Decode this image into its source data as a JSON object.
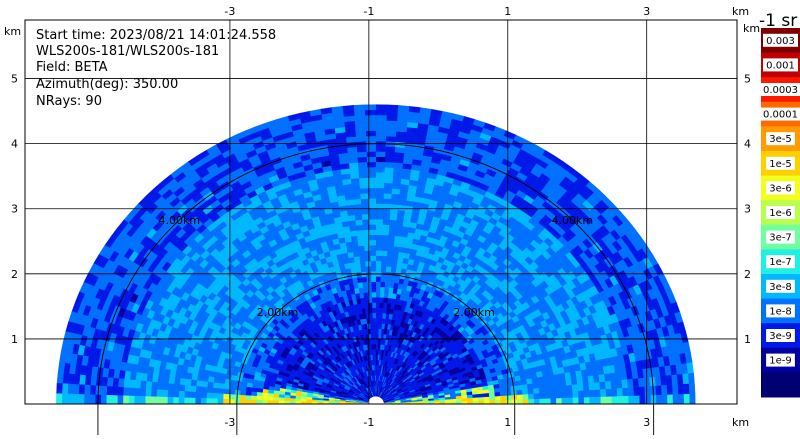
{
  "chart_data": {
    "type": "heatmap",
    "subtype": "radar-rhi-sector",
    "info": {
      "start_time": "Start time: 2023/08/21 14:01:24.558",
      "instrument": "WLS200s-181/WLS200s-181",
      "field": "Field: BETA",
      "azimuth": "Azimuth(deg): 350.00",
      "nrays": "NRays: 90"
    },
    "x_axis": {
      "unit": "km",
      "ticks": [
        -3,
        -1,
        1,
        3
      ],
      "range": [
        -5.95,
        4.3
      ]
    },
    "y_axis": {
      "unit": "km",
      "ticks": [
        1,
        2,
        3,
        4,
        5
      ],
      "range": [
        0,
        5.9
      ]
    },
    "range_rings": [
      {
        "radius_km": 2.0,
        "label": "2.00km"
      },
      {
        "radius_km": 4.0,
        "label": "4.00km"
      }
    ],
    "scan": {
      "center_x_km": -0.9,
      "max_range_km": 4.6,
      "azimuth_deg": 350.0,
      "nrays": 90
    },
    "colorbar": {
      "title": "-1 sr",
      "labels": [
        "0.003",
        "0.001",
        "0.0003",
        "0.0001",
        "3e-5",
        "1e-5",
        "3e-6",
        "1e-6",
        "3e-7",
        "1e-7",
        "3e-8",
        "1e-8",
        "3e-9",
        "1e-9"
      ],
      "colors": [
        "#800000",
        "#c00000",
        "#ff1800",
        "#ff6a00",
        "#ff9a00",
        "#ffd000",
        "#f0ff20",
        "#b8ff50",
        "#70ffa0",
        "#20f0e0",
        "#00b8ff",
        "#0070ff",
        "#0018e8",
        "#0000a0",
        "#000070"
      ]
    }
  }
}
